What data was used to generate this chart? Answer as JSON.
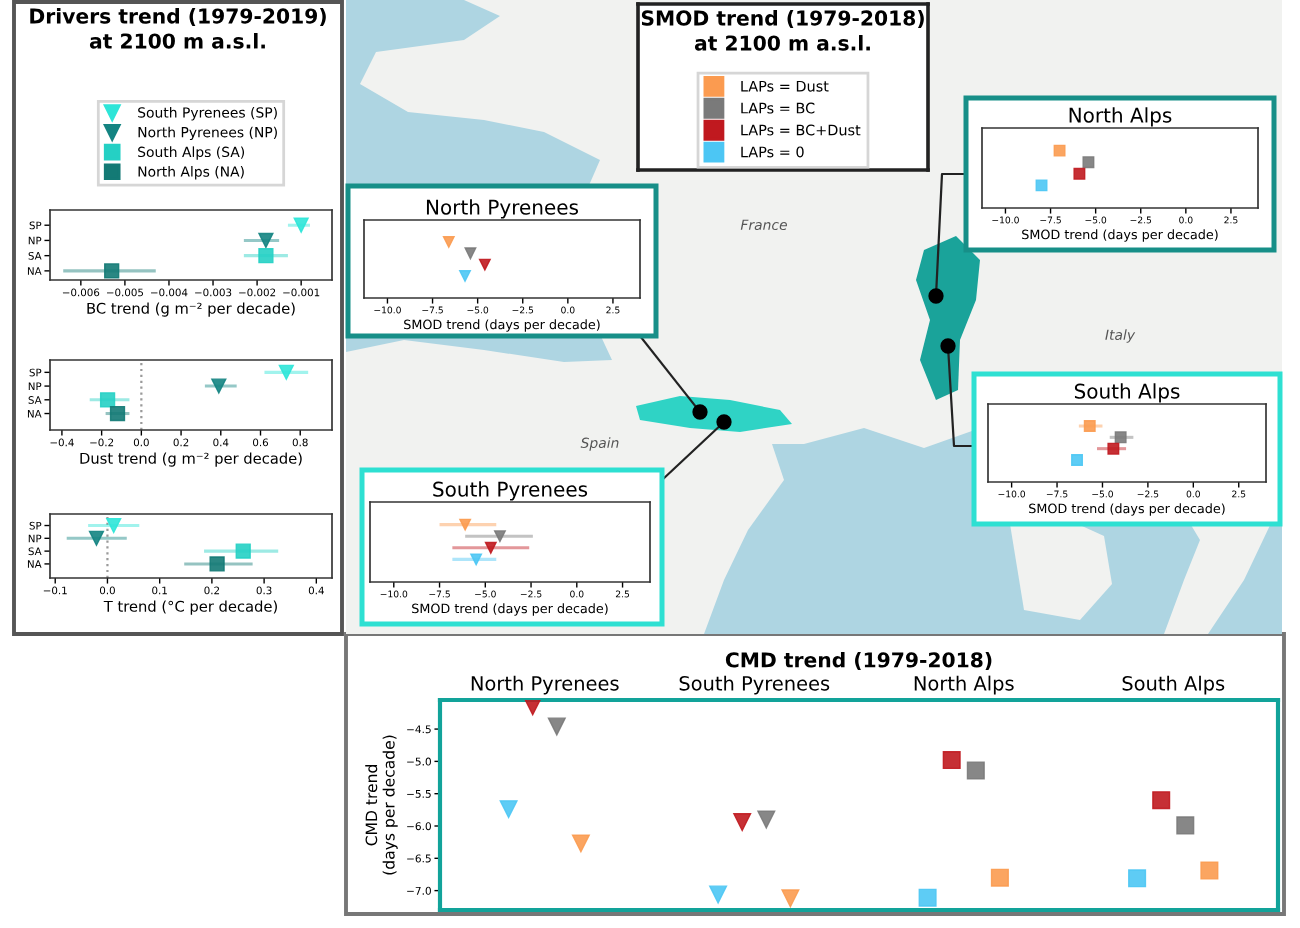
{
  "chart_data": [
    {
      "type": "scatter",
      "orientation": "horizontal",
      "title": "Drivers trend (1979-2019)\nat 2100 m a.s.l.",
      "xlabel": "BC trend (g m⁻² per decade)",
      "categories": [
        "SP",
        "NP",
        "SA",
        "NA"
      ],
      "xlim": [
        -0.0067,
        -0.0003
      ],
      "xticks": [
        -0.006,
        -0.005,
        -0.004,
        -0.003,
        -0.002,
        -0.001
      ],
      "legend": "top",
      "series": [
        {
          "name": "South Pyrenees (SP)",
          "color": "#2ee5d8",
          "marker": "triangle",
          "values": [
            -0.001,
            null,
            null,
            null
          ],
          "errors": [
            [
              -0.0013,
              -0.0008
            ],
            null,
            null,
            null
          ]
        },
        {
          "name": "North Pyrenees (NP)",
          "color": "#148482",
          "marker": "triangle",
          "values": [
            null,
            -0.0018,
            null,
            null
          ],
          "errors": [
            null,
            [
              -0.0023,
              -0.0015
            ],
            null,
            null
          ]
        },
        {
          "name": "South Alps (SA)",
          "color": "#25d0c4",
          "marker": "square",
          "values": [
            null,
            null,
            -0.0018,
            null
          ],
          "errors": [
            null,
            null,
            [
              -0.0023,
              -0.0013
            ],
            null
          ]
        },
        {
          "name": "North Alps (NA)",
          "color": "#137a75",
          "marker": "square",
          "values": [
            null,
            null,
            null,
            -0.0053
          ],
          "errors": [
            null,
            null,
            null,
            [
              -0.0064,
              -0.0043
            ]
          ]
        }
      ]
    },
    {
      "type": "scatter",
      "orientation": "horizontal",
      "xlabel": "Dust trend (g m⁻² per decade)",
      "categories": [
        "SP",
        "NP",
        "SA",
        "NA"
      ],
      "xlim": [
        -0.46,
        0.96
      ],
      "xticks": [
        -0.4,
        -0.2,
        {
          "value": 0,
          "label": "0.0"
        },
        0.2,
        0.4,
        0.6,
        0.8
      ],
      "ref_lines": [
        {
          "axis": "x",
          "value": 0,
          "line_style": "dotted",
          "color": "#9a9a9a"
        }
      ],
      "series": [
        {
          "color": "#2ee5d8",
          "marker": "triangle",
          "values": [
            0.73,
            null,
            null,
            null
          ],
          "errors": [
            [
              0.62,
              0.84
            ],
            null,
            null,
            null
          ]
        },
        {
          "color": "#148482",
          "marker": "triangle",
          "values": [
            null,
            0.39,
            null,
            null
          ],
          "errors": [
            null,
            [
              0.32,
              0.48
            ],
            null,
            null
          ]
        },
        {
          "color": "#25d0c4",
          "marker": "square",
          "values": [
            null,
            null,
            -0.17,
            null
          ],
          "errors": [
            null,
            null,
            [
              -0.26,
              -0.06
            ],
            null
          ]
        },
        {
          "color": "#137a75",
          "marker": "square",
          "values": [
            null,
            null,
            null,
            -0.12
          ],
          "errors": [
            null,
            null,
            null,
            [
              -0.18,
              -0.06
            ]
          ]
        }
      ]
    },
    {
      "type": "scatter",
      "orientation": "horizontal",
      "xlabel": "T trend (°C per decade)",
      "categories": [
        "SP",
        "NP",
        "SA",
        "NA"
      ],
      "xlim": [
        -0.11,
        0.43
      ],
      "xticks": [
        -0.1,
        {
          "value": 0,
          "label": "0.0"
        },
        0.1,
        0.2,
        0.3,
        0.4
      ],
      "ref_lines": [
        {
          "axis": "x",
          "value": 0,
          "line_style": "dotted",
          "color": "#9a9a9a"
        }
      ],
      "series": [
        {
          "color": "#2ee5d8",
          "marker": "triangle",
          "values": [
            0.012,
            null,
            null,
            null
          ],
          "errors": [
            [
              -0.037,
              0.061
            ],
            null,
            null,
            null
          ]
        },
        {
          "color": "#148482",
          "marker": "triangle",
          "values": [
            null,
            -0.021,
            null,
            null
          ],
          "errors": [
            null,
            [
              -0.078,
              0.037
            ],
            null,
            null
          ]
        },
        {
          "color": "#25d0c4",
          "marker": "square",
          "values": [
            null,
            null,
            0.26,
            null
          ],
          "errors": [
            null,
            null,
            [
              0.185,
              0.327
            ],
            null
          ]
        },
        {
          "color": "#137a75",
          "marker": "square",
          "values": [
            null,
            null,
            null,
            0.21
          ],
          "errors": [
            null,
            null,
            null,
            [
              0.147,
              0.278
            ]
          ]
        }
      ]
    },
    {
      "type": "other",
      "title": "SMOD trend (1979-2018)\nat 2100 m a.s.l.",
      "legend": "top",
      "annotations": [
        "France",
        "Spain",
        "Italy"
      ],
      "series": [
        {
          "name": "LAPs = Dust",
          "color": "#fb9b50"
        },
        {
          "name": "LAPs = BC",
          "color": "#7a7a7a"
        },
        {
          "name": "LAPs = BC+Dust",
          "color": "#c0191f"
        },
        {
          "name": "LAPs = 0",
          "color": "#4cc6f4"
        }
      ]
    },
    {
      "type": "scatter",
      "orientation": "horizontal",
      "title": "North Alps",
      "xlabel": "SMOD trend (days per decade)",
      "categories": [
        null
      ],
      "xlim": [
        -11.3,
        4.0
      ],
      "xticks": [
        {
          "value": -10,
          "label": "−10.0"
        },
        -7.5,
        {
          "value": -5,
          "label": "−5.0"
        },
        -2.5,
        {
          "value": 0,
          "label": "0.0"
        },
        2.5
      ],
      "marker": "square",
      "series": [
        {
          "color": "#fb9b50",
          "values": [
            -7.0
          ]
        },
        {
          "color": "#7a7a7a",
          "values": [
            -5.4
          ]
        },
        {
          "color": "#c0191f",
          "values": [
            -5.9
          ]
        },
        {
          "color": "#4cc6f4",
          "values": [
            -8.0
          ]
        }
      ]
    },
    {
      "type": "scatter",
      "orientation": "horizontal",
      "title": "North Pyrenees",
      "xlabel": "SMOD trend (days per decade)",
      "categories": [
        null
      ],
      "xlim": [
        -11.3,
        4.0
      ],
      "xticks": [
        {
          "value": -10,
          "label": "−10.0"
        },
        -7.5,
        {
          "value": -5,
          "label": "−5.0"
        },
        -2.5,
        {
          "value": 0,
          "label": "0.0"
        },
        2.5
      ],
      "marker": "triangle",
      "series": [
        {
          "color": "#fb9b50",
          "values": [
            -6.6
          ]
        },
        {
          "color": "#7a7a7a",
          "values": [
            -5.4
          ]
        },
        {
          "color": "#c0191f",
          "values": [
            -4.6
          ]
        },
        {
          "color": "#4cc6f4",
          "values": [
            -5.7
          ]
        }
      ]
    },
    {
      "type": "scatter",
      "orientation": "horizontal",
      "title": "South Alps",
      "xlabel": "SMOD trend (days per decade)",
      "categories": [
        null
      ],
      "xlim": [
        -11.3,
        4.0
      ],
      "xticks": [
        {
          "value": -10,
          "label": "−10.0"
        },
        -7.5,
        {
          "value": -5,
          "label": "−5.0"
        },
        -2.5,
        {
          "value": 0,
          "label": "0.0"
        },
        2.5
      ],
      "marker": "square",
      "series": [
        {
          "color": "#fb9b50",
          "values": [
            -5.7
          ],
          "errors": [
            [
              -6.3,
              -5.0
            ]
          ]
        },
        {
          "color": "#7a7a7a",
          "values": [
            -4.0
          ],
          "errors": [
            [
              -4.6,
              -3.3
            ]
          ]
        },
        {
          "color": "#c0191f",
          "values": [
            -4.4
          ],
          "errors": [
            [
              -5.3,
              -3.7
            ]
          ]
        },
        {
          "color": "#4cc6f4",
          "values": [
            -6.4
          ]
        }
      ]
    },
    {
      "type": "scatter",
      "orientation": "horizontal",
      "title": "South Pyrenees",
      "xlabel": "SMOD trend (days per decade)",
      "categories": [
        null
      ],
      "xlim": [
        -11.3,
        4.0
      ],
      "xticks": [
        {
          "value": -10,
          "label": "−10.0"
        },
        -7.5,
        {
          "value": -5,
          "label": "−5.0"
        },
        -2.5,
        {
          "value": 0,
          "label": "0.0"
        },
        2.5
      ],
      "marker": "triangle",
      "series": [
        {
          "color": "#fb9b50",
          "values": [
            -6.1
          ],
          "errors": [
            [
              -7.5,
              -4.4
            ]
          ]
        },
        {
          "color": "#7a7a7a",
          "values": [
            -4.2
          ],
          "errors": [
            [
              -6.1,
              -2.4
            ]
          ]
        },
        {
          "color": "#c0191f",
          "values": [
            -4.7
          ],
          "errors": [
            [
              -6.8,
              -2.6
            ]
          ]
        },
        {
          "color": "#4cc6f4",
          "values": [
            -5.5
          ],
          "errors": [
            [
              -6.8,
              -4.4
            ]
          ]
        }
      ]
    },
    {
      "type": "scatter",
      "title": "CMD trend (1979-2018)",
      "ylabel": "CMD trend\n(days per decade)",
      "categories": [
        "North Pyrenees",
        "South Pyrenees",
        "North Alps",
        "South Alps"
      ],
      "ylim": [
        -7.3,
        -4.05
      ],
      "yticks": [
        {
          "value": -7,
          "label": "−7.0"
        },
        -6.5,
        {
          "value": -6,
          "label": "−6.0"
        },
        -5.5,
        {
          "value": -5,
          "label": "−5.0"
        },
        -4.5
      ],
      "series": [
        {
          "color": "#4cc6f4",
          "marker": "triangle",
          "values": [
            -5.74,
            -7.06,
            null,
            null
          ]
        },
        {
          "color": "#c0191f",
          "marker": "triangle",
          "values": [
            -4.15,
            -5.94,
            null,
            null
          ]
        },
        {
          "color": "#7a7a7a",
          "marker": "triangle",
          "values": [
            -4.46,
            -5.9,
            null,
            null
          ]
        },
        {
          "color": "#fb9b50",
          "marker": "triangle",
          "values": [
            -6.27,
            -7.12,
            null,
            null
          ]
        },
        {
          "color": "#4cc6f4",
          "marker": "square",
          "values": [
            null,
            null,
            -7.11,
            -6.81
          ]
        },
        {
          "color": "#c0191f",
          "marker": "square",
          "values": [
            null,
            null,
            -4.98,
            -5.6
          ]
        },
        {
          "color": "#7a7a7a",
          "marker": "square",
          "values": [
            null,
            null,
            -5.14,
            -5.99
          ]
        },
        {
          "color": "#fb9b50",
          "marker": "square",
          "values": [
            null,
            null,
            -6.8,
            -6.69
          ]
        }
      ]
    }
  ]
}
